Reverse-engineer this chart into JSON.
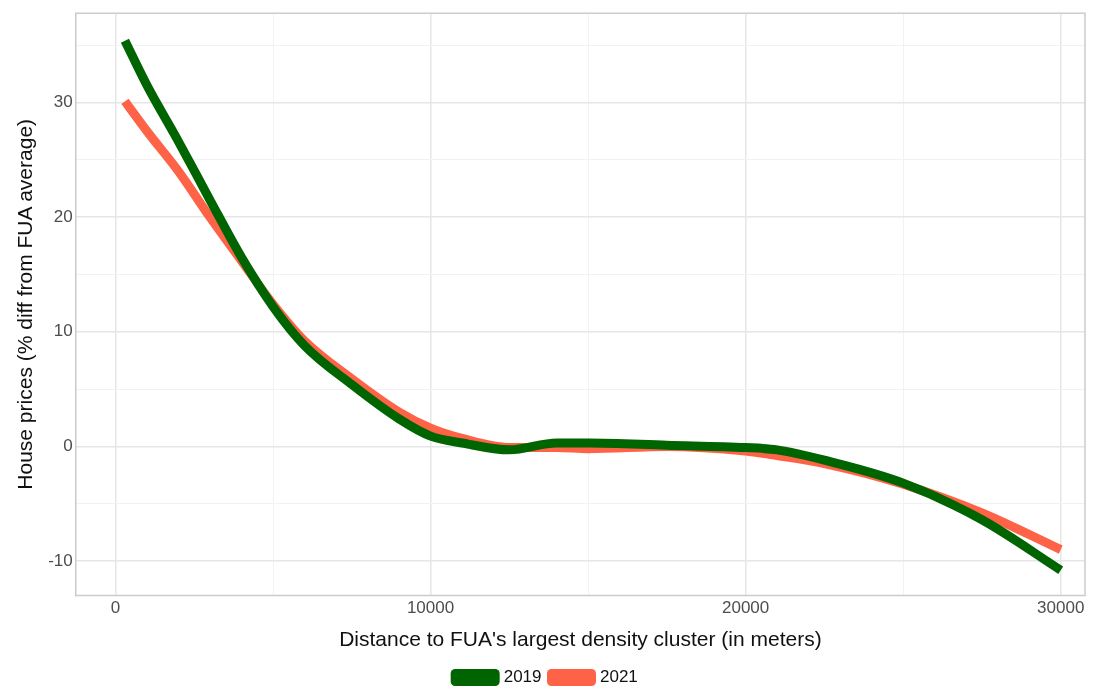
{
  "chart_data": {
    "type": "line",
    "xlabel": "Distance to FUA's largest density cluster (in meters)",
    "ylabel": "House prices (% diff from FUA average)",
    "xlim": [
      -1260,
      30770
    ],
    "ylim": [
      -13,
      37.8
    ],
    "xticks": [
      {
        "value": 0,
        "label": "0"
      },
      {
        "value": 5000,
        "label": null
      },
      {
        "value": 10000,
        "label": "10000"
      },
      {
        "value": 15000,
        "label": null
      },
      {
        "value": 20000,
        "label": "20000"
      },
      {
        "value": 25000,
        "label": null
      },
      {
        "value": 30000,
        "label": "30000"
      }
    ],
    "yticks": [
      {
        "value": -10,
        "label": "-10"
      },
      {
        "value": -5,
        "label": null
      },
      {
        "value": 0,
        "label": "0"
      },
      {
        "value": 5,
        "label": null
      },
      {
        "value": 10,
        "label": "10"
      },
      {
        "value": 15,
        "label": null
      },
      {
        "value": 20,
        "label": "20"
      },
      {
        "value": 25,
        "label": null
      },
      {
        "value": 30,
        "label": "30"
      },
      {
        "value": 35,
        "label": null
      }
    ],
    "grid": true,
    "legend": "bottom",
    "marker": "none",
    "line_style": "solid",
    "series": [
      {
        "name": "2019",
        "color": "#006400",
        "x": [
          300,
          1000,
          2000,
          3000,
          4000,
          5000,
          6000,
          7500,
          9000,
          10000,
          11000,
          12500,
          14000,
          15000,
          17500,
          20000,
          21000,
          22500,
          25000,
          27500,
          30000
        ],
        "values": [
          35.4,
          31.5,
          26.6,
          21.5,
          16.5,
          12.2,
          8.8,
          5.4,
          2.4,
          0.9,
          0.3,
          -0.3,
          0.3,
          0.3,
          0.1,
          -0.1,
          -0.3,
          -1.2,
          -3.2,
          -6.4,
          -10.8
        ]
      },
      {
        "name": "2021",
        "color": "#ff6347",
        "x": [
          300,
          1000,
          2000,
          3000,
          4000,
          5000,
          6000,
          7500,
          9000,
          10000,
          11000,
          12500,
          14000,
          15000,
          17500,
          20000,
          21000,
          22500,
          25000,
          27500,
          30000
        ],
        "values": [
          30.1,
          27.5,
          24.0,
          20.0,
          16.2,
          12.4,
          9.2,
          5.9,
          3.0,
          1.6,
          0.7,
          -0.1,
          -0.1,
          -0.2,
          0,
          -0.4,
          -0.8,
          -1.5,
          -3.3,
          -5.8,
          -9.0
        ]
      }
    ]
  }
}
